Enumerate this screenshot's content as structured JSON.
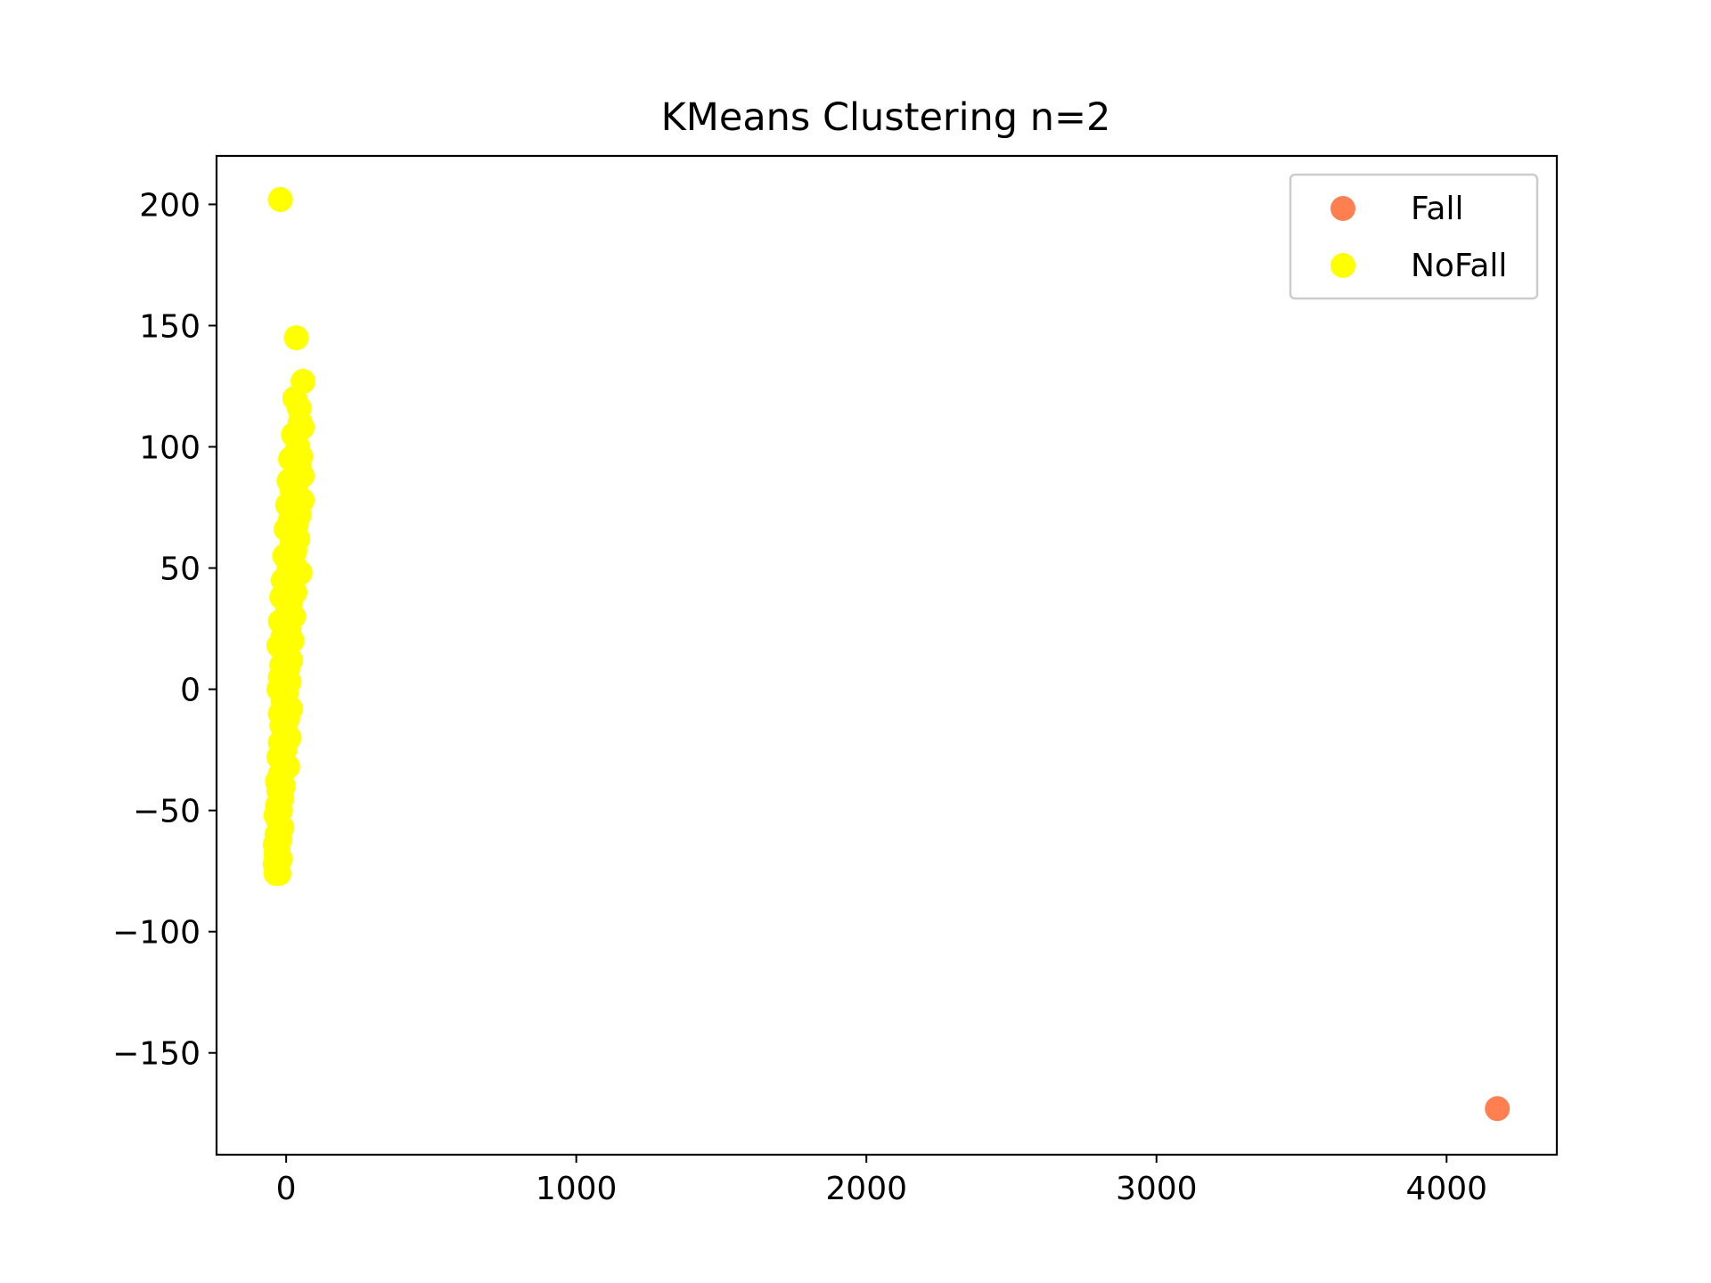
{
  "chart_data": {
    "type": "scatter",
    "title": "KMeans Clustering n=2",
    "xlabel": "",
    "ylabel": "",
    "xlim": [
      -240,
      4380
    ],
    "ylim": [
      -192,
      220
    ],
    "grid": false,
    "legend_placement": "top-right",
    "x_ticks": [
      0,
      1000,
      2000,
      3000,
      4000
    ],
    "y_ticks": [
      -150,
      -100,
      -50,
      0,
      50,
      100,
      150,
      200
    ],
    "series": [
      {
        "name": "Fall",
        "color": "#ff7f50",
        "points": [
          [
            4175,
            -173
          ]
        ]
      },
      {
        "name": "NoFall",
        "color": "#ffff00",
        "points": [
          [
            -20,
            202
          ],
          [
            35,
            145
          ],
          [
            58,
            127
          ],
          [
            30,
            120
          ],
          [
            45,
            116
          ],
          [
            48,
            110
          ],
          [
            55,
            108
          ],
          [
            25,
            105
          ],
          [
            40,
            100
          ],
          [
            50,
            96
          ],
          [
            15,
            95
          ],
          [
            45,
            92
          ],
          [
            35,
            90
          ],
          [
            55,
            88
          ],
          [
            10,
            86
          ],
          [
            30,
            84
          ],
          [
            20,
            82
          ],
          [
            40,
            80
          ],
          [
            55,
            78
          ],
          [
            5,
            76
          ],
          [
            25,
            74
          ],
          [
            45,
            72
          ],
          [
            15,
            70
          ],
          [
            35,
            68
          ],
          [
            0,
            66
          ],
          [
            40,
            62
          ],
          [
            20,
            60
          ],
          [
            30,
            57
          ],
          [
            -5,
            55
          ],
          [
            25,
            52
          ],
          [
            10,
            50
          ],
          [
            48,
            48
          ],
          [
            -10,
            45
          ],
          [
            20,
            44
          ],
          [
            0,
            42
          ],
          [
            30,
            40
          ],
          [
            -15,
            38
          ],
          [
            15,
            36
          ],
          [
            5,
            32
          ],
          [
            25,
            30
          ],
          [
            -20,
            28
          ],
          [
            10,
            25
          ],
          [
            -10,
            22
          ],
          [
            20,
            20
          ],
          [
            -25,
            18
          ],
          [
            0,
            15
          ],
          [
            15,
            12
          ],
          [
            -15,
            10
          ],
          [
            5,
            8
          ],
          [
            -20,
            5
          ],
          [
            10,
            3
          ],
          [
            -25,
            0
          ],
          [
            0,
            -2
          ],
          [
            -10,
            -5
          ],
          [
            15,
            -8
          ],
          [
            -20,
            -10
          ],
          [
            5,
            -12
          ],
          [
            -15,
            -15
          ],
          [
            0,
            -18
          ],
          [
            10,
            -20
          ],
          [
            -20,
            -22
          ],
          [
            -5,
            -25
          ],
          [
            -25,
            -28
          ],
          [
            -10,
            -30
          ],
          [
            5,
            -32
          ],
          [
            -20,
            -35
          ],
          [
            -30,
            -38
          ],
          [
            -10,
            -40
          ],
          [
            -25,
            -42
          ],
          [
            -15,
            -45
          ],
          [
            -30,
            -48
          ],
          [
            -20,
            -50
          ],
          [
            -35,
            -52
          ],
          [
            -25,
            -55
          ],
          [
            -15,
            -57
          ],
          [
            -32,
            -60
          ],
          [
            -22,
            -62
          ],
          [
            -38,
            -64
          ],
          [
            -28,
            -66
          ],
          [
            -35,
            -68
          ],
          [
            -20,
            -70
          ],
          [
            -38,
            -72
          ],
          [
            -30,
            -74
          ],
          [
            -35,
            -76
          ],
          [
            -25,
            -76
          ]
        ]
      }
    ]
  }
}
